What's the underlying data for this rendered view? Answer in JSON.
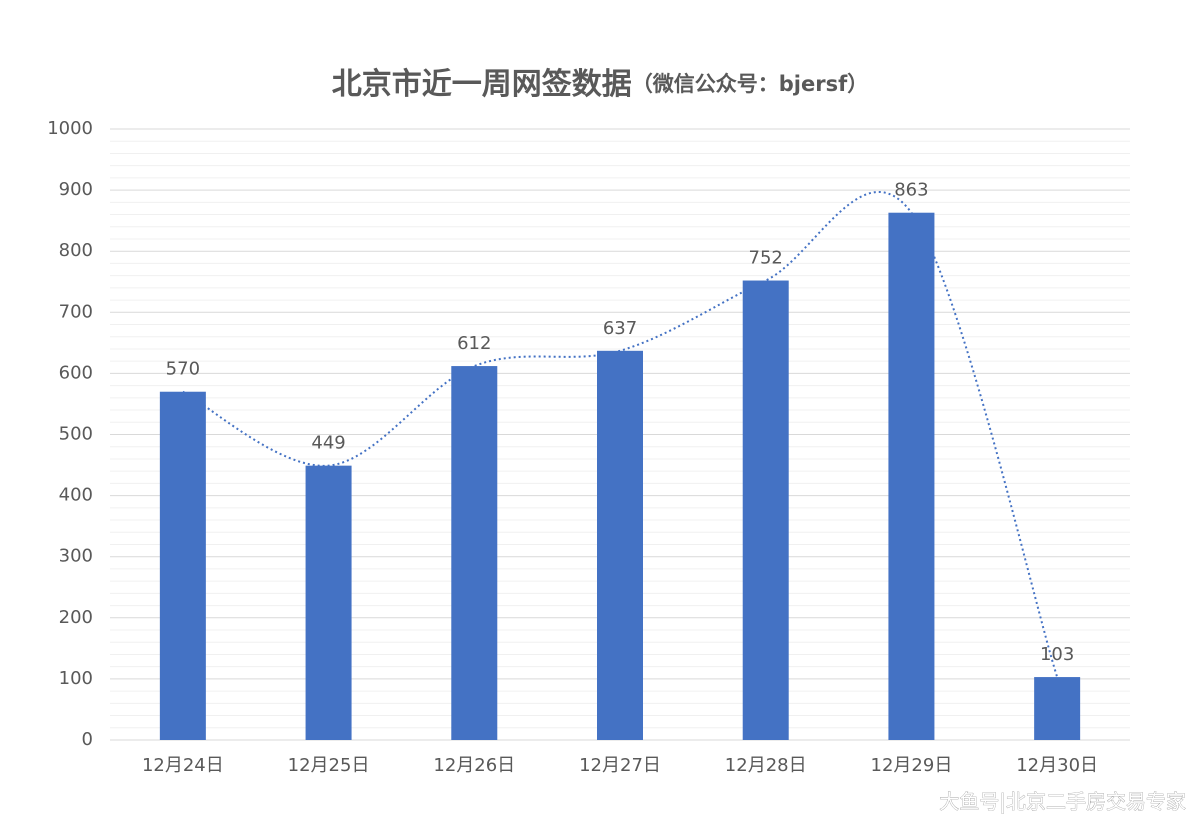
{
  "chart_data": {
    "type": "bar",
    "title": "北京市近一周网签数据",
    "subtitle": "（微信公众号：bjersf）",
    "categories": [
      "12月24日",
      "12月25日",
      "12月26日",
      "12月27日",
      "12月28日",
      "12月29日",
      "12月30日"
    ],
    "values": [
      570,
      449,
      612,
      637,
      752,
      863,
      103
    ],
    "color": "#4472c4",
    "ylim": [
      0,
      1000
    ],
    "yticks": [
      0,
      100,
      200,
      300,
      400,
      500,
      600,
      700,
      800,
      900,
      1000
    ],
    "grid": true,
    "trend_line": true,
    "trend_color": "#4472c4",
    "watermark": "大鱼号|北京二手房交易专家"
  }
}
